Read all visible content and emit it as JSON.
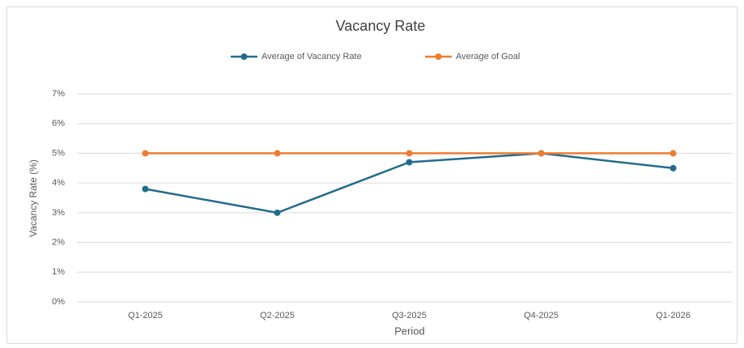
{
  "chart_data": {
    "type": "line",
    "title": "Vacancy Rate",
    "x_label": "Period",
    "y_label": "Vacancy Rate (%)",
    "categories": [
      "Q1-2025",
      "Q2-2025",
      "Q3-2025",
      "Q4-2025",
      "Q1-2026"
    ],
    "series": [
      {
        "name": "Average of Vacancy Rate",
        "color": "#236b8e",
        "values": [
          3.8,
          3.0,
          4.7,
          5.0,
          4.5
        ]
      },
      {
        "name": "Average of Goal",
        "color": "#ed7d31",
        "values": [
          5,
          5,
          5,
          5,
          5
        ]
      }
    ],
    "ylim": [
      0,
      7
    ],
    "yticks": [
      {
        "value": 0,
        "label": "0%"
      },
      {
        "value": 1,
        "label": "1%"
      },
      {
        "value": 2,
        "label": "2%"
      },
      {
        "value": 3,
        "label": "3%"
      },
      {
        "value": 4,
        "label": "4%"
      },
      {
        "value": 5,
        "label": "5%"
      },
      {
        "value": 6,
        "label": "6%"
      },
      {
        "value": 7,
        "label": "7%"
      }
    ],
    "grid": true,
    "legend": "top"
  }
}
